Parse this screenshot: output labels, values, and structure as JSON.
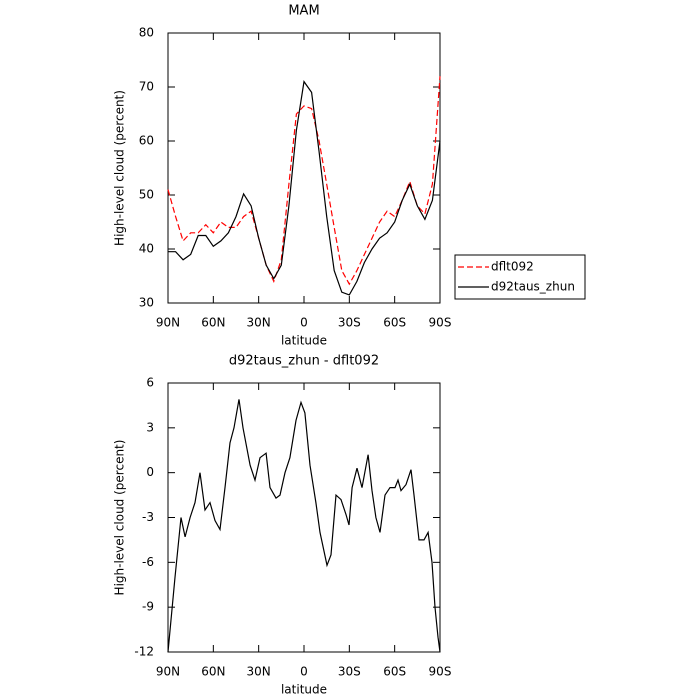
{
  "chart_data": [
    {
      "type": "line",
      "title": "MAM",
      "x_label": "latitude",
      "y_label": "High-level cloud (percent)",
      "x": [
        90,
        85,
        80,
        75,
        70,
        65,
        60,
        55,
        50,
        45,
        40,
        35,
        30,
        25,
        20,
        15,
        10,
        5,
        0,
        -5,
        -10,
        -15,
        -20,
        -25,
        -30,
        -35,
        -40,
        -45,
        -50,
        -55,
        -60,
        -65,
        -70,
        -75,
        -80,
        -85,
        -90
      ],
      "series": [
        {
          "name": "dflt092",
          "color": "#ff0000",
          "dashed": true,
          "values": [
            51,
            46,
            41.5,
            43,
            43,
            44.5,
            43,
            45,
            44,
            44,
            46,
            47,
            42,
            37,
            34,
            38,
            52,
            65,
            66.5,
            66,
            60,
            52,
            44,
            36,
            33.5,
            36,
            39,
            42,
            45,
            47,
            46,
            49,
            52.5,
            48,
            46.5,
            52,
            72
          ]
        },
        {
          "name": "d92taus_zhun",
          "color": "#000000",
          "dashed": false,
          "values": [
            39.5,
            39.5,
            38,
            39,
            42.5,
            42.5,
            40.5,
            41.5,
            43,
            46,
            50.2,
            48,
            42,
            37,
            34.5,
            37,
            48,
            62,
            71,
            69,
            58,
            46,
            36,
            32,
            31.5,
            34,
            37.5,
            40,
            42,
            43,
            45,
            49,
            52,
            48,
            45.5,
            49,
            60
          ]
        }
      ],
      "xlim": [
        90,
        -90
      ],
      "xticks": [
        {
          "value": 90,
          "label": "90N"
        },
        {
          "value": 60,
          "label": "60N"
        },
        {
          "value": 30,
          "label": "30N"
        },
        0,
        {
          "value": -30,
          "label": "30S"
        },
        {
          "value": -60,
          "label": "60S"
        },
        {
          "value": -90,
          "label": "90S"
        }
      ],
      "ylim": [
        30,
        80
      ],
      "yticks": [
        30,
        40,
        50,
        60,
        70,
        80
      ],
      "legend": "right"
    },
    {
      "type": "line",
      "title": "d92taus_zhun - dflt092",
      "x_label": "latitude",
      "y_label": "High-level cloud (percent)",
      "x": [
        90,
        85.4,
        81.4,
        78.7,
        75.4,
        72.1,
        68.8,
        65.5,
        62.2,
        58.9,
        55.6,
        52.3,
        49,
        46.3,
        43,
        40.4,
        35.7,
        32.4,
        29.1,
        25.1,
        22.5,
        18.5,
        15.9,
        12.6,
        9.3,
        5.3,
        2,
        -0.6,
        -4,
        -7.9,
        -10.6,
        -15.2,
        -17.9,
        -21.2,
        -24.5,
        -27.8,
        -29.8,
        -31.8,
        -35.1,
        -38.4,
        -42.4,
        -45,
        -47.6,
        -50.3,
        -53.6,
        -56.9,
        -60.2,
        -62.2,
        -64.2,
        -67.5,
        -70.8,
        -72.8,
        -76.1,
        -79.4,
        -82.1,
        -84.7,
        -86.7,
        -88.7,
        -90
      ],
      "values": [
        -12,
        -7,
        -3,
        -4.3,
        -3,
        -2,
        0,
        -2.5,
        -2,
        -3.2,
        -3.8,
        -1,
        2,
        3,
        4.9,
        3,
        0.5,
        -0.5,
        1,
        1.3,
        -1,
        -1.7,
        -1.5,
        0,
        1,
        3.5,
        4.7,
        4,
        0.5,
        -2,
        -4,
        -6.2,
        -5.5,
        -1.5,
        -1.8,
        -2.8,
        -3.5,
        -1,
        0.3,
        -1,
        1.2,
        -1.2,
        -3,
        -4,
        -1.5,
        -1,
        -1,
        -0.5,
        -1.2,
        -0.8,
        0.2,
        -1.5,
        -4.5,
        -4.5,
        -4,
        -6,
        -9,
        -11,
        -12
      ],
      "color": "#000000",
      "xlim": [
        90,
        -90
      ],
      "xticks": [
        {
          "value": 90,
          "label": "90N"
        },
        {
          "value": 60,
          "label": "60N"
        },
        {
          "value": 30,
          "label": "30N"
        },
        0,
        {
          "value": -30,
          "label": "30S"
        },
        {
          "value": -60,
          "label": "60S"
        },
        {
          "value": -90,
          "label": "90S"
        }
      ],
      "ylim": [
        -12,
        6
      ],
      "yticks": [
        -12,
        -9,
        -6,
        -3,
        0,
        3,
        6
      ]
    }
  ]
}
